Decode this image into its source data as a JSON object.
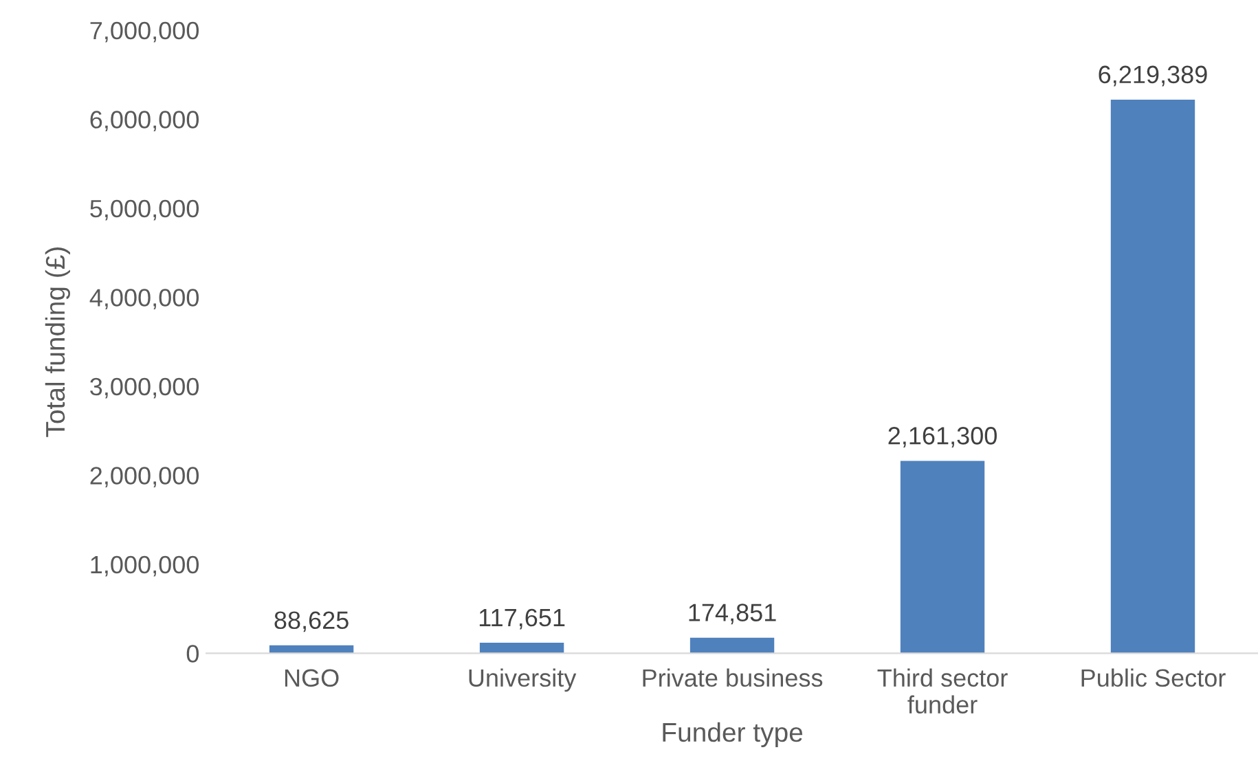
{
  "chart_data": {
    "type": "bar",
    "xlabel": "Funder type",
    "ylabel": "Total funding (£)",
    "categories": [
      "NGO",
      "University",
      "Private business",
      "Third sector\nfunder",
      "Public Sector"
    ],
    "values": [
      88625,
      117651,
      174851,
      2161300,
      6219389
    ],
    "value_labels": [
      "88,625",
      "117,651",
      "174,851",
      "2,161,300",
      "6,219,389"
    ],
    "color": "#4f81bd",
    "ylim": [
      0,
      7000000
    ],
    "yticks": [
      {
        "value": 0,
        "label": "0"
      },
      {
        "value": 1000000,
        "label": "1,000,000"
      },
      {
        "value": 2000000,
        "label": "2,000,000"
      },
      {
        "value": 3000000,
        "label": "3,000,000"
      },
      {
        "value": 4000000,
        "label": "4,000,000"
      },
      {
        "value": 5000000,
        "label": "5,000,000"
      },
      {
        "value": 6000000,
        "label": "6,000,000"
      },
      {
        "value": 7000000,
        "label": "7,000,000"
      }
    ],
    "grid": false,
    "legend": false
  }
}
